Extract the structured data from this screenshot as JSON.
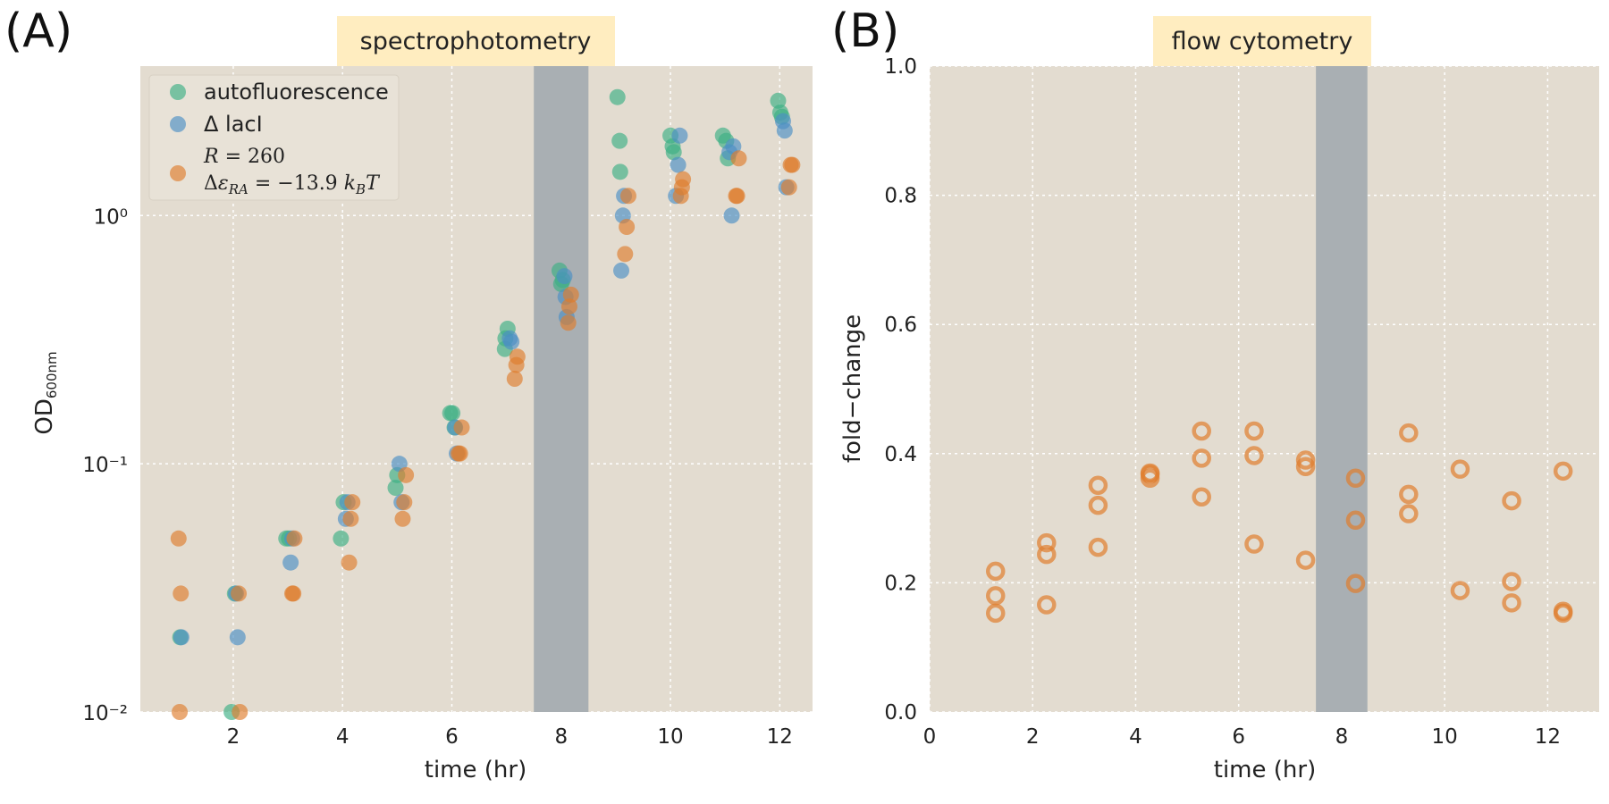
{
  "colors": {
    "background": "#E3DCD0",
    "grid": "#FFFFFF",
    "shade": "#A9AFB3",
    "title_bg": "#FFEDC0",
    "autofluorescence": "#3CAF84",
    "delta_laci": "#4B8FC4",
    "R260": "#DF7D2D"
  },
  "panel_labels": [
    "(A)",
    "(B)"
  ],
  "chart_data": [
    {
      "type": "scatter",
      "title": "spectrophotometry",
      "xlabel": "time (hr)",
      "ylabel": "OD600nm",
      "yscale": "log",
      "xlim": [
        0.3,
        12.6
      ],
      "ylim": [
        0.01,
        4.0
      ],
      "xticks": [
        2,
        4,
        6,
        8,
        10,
        12
      ],
      "yticks": [
        {
          "value": 0.01,
          "label": "10⁻²"
        },
        {
          "value": 0.1,
          "label": "10⁻¹"
        },
        {
          "value": 1,
          "label": "10⁰"
        }
      ],
      "shaded_region": [
        7.5,
        8.5
      ],
      "grid": true,
      "legend": "top-left",
      "series": [
        {
          "name": "autofluorescence",
          "color_key": "autofluorescence",
          "points": [
            [
              1.03,
              0.02
            ],
            [
              1.97,
              0.01
            ],
            [
              2.03,
              0.03
            ],
            [
              2.97,
              0.05
            ],
            [
              3.02,
              0.05
            ],
            [
              3.97,
              0.05
            ],
            [
              4.02,
              0.07
            ],
            [
              4.97,
              0.08
            ],
            [
              5.0,
              0.09
            ],
            [
              5.97,
              0.16
            ],
            [
              6.01,
              0.16
            ],
            [
              6.05,
              0.14
            ],
            [
              6.98,
              0.32
            ],
            [
              7.02,
              0.35
            ],
            [
              6.97,
              0.29
            ],
            [
              7.97,
              0.6
            ],
            [
              8.0,
              0.53
            ],
            [
              8.03,
              0.55
            ],
            [
              9.03,
              3.0
            ],
            [
              9.07,
              2.0
            ],
            [
              9.08,
              1.5
            ],
            [
              10.0,
              2.1
            ],
            [
              10.04,
              1.9
            ],
            [
              10.06,
              1.8
            ],
            [
              10.96,
              2.1
            ],
            [
              11.02,
              2.0
            ],
            [
              11.05,
              1.7
            ],
            [
              11.97,
              2.9
            ],
            [
              12.01,
              2.6
            ],
            [
              12.04,
              2.5
            ]
          ]
        },
        {
          "name": "Δ lacI",
          "color_key": "delta_laci",
          "points": [
            [
              1.05,
              0.02
            ],
            [
              2.05,
              0.03
            ],
            [
              2.08,
              0.02
            ],
            [
              3.05,
              0.04
            ],
            [
              3.08,
              0.05
            ],
            [
              4.06,
              0.06
            ],
            [
              4.09,
              0.07
            ],
            [
              5.04,
              0.1
            ],
            [
              5.08,
              0.07
            ],
            [
              6.06,
              0.14
            ],
            [
              6.09,
              0.11
            ],
            [
              7.06,
              0.32
            ],
            [
              7.09,
              0.31
            ],
            [
              8.06,
              0.57
            ],
            [
              8.08,
              0.47
            ],
            [
              8.1,
              0.39
            ],
            [
              9.1,
              0.6
            ],
            [
              9.13,
              1.0
            ],
            [
              9.15,
              1.2
            ],
            [
              10.1,
              1.2
            ],
            [
              10.14,
              1.6
            ],
            [
              10.17,
              2.1
            ],
            [
              11.08,
              1.8
            ],
            [
              11.12,
              1.0
            ],
            [
              11.15,
              1.9
            ],
            [
              12.06,
              2.4
            ],
            [
              12.09,
              2.2
            ],
            [
              12.12,
              1.3
            ]
          ]
        },
        {
          "name": "R = 260, Δε_RA = −13.9 k_BT",
          "color_key": "R260",
          "points": [
            [
              1.0,
              0.05
            ],
            [
              1.04,
              0.03
            ],
            [
              1.02,
              0.01
            ],
            [
              2.1,
              0.03
            ],
            [
              2.12,
              0.01
            ],
            [
              3.08,
              0.03
            ],
            [
              3.12,
              0.05
            ],
            [
              3.1,
              0.03
            ],
            [
              4.12,
              0.04
            ],
            [
              4.15,
              0.06
            ],
            [
              4.18,
              0.07
            ],
            [
              5.1,
              0.06
            ],
            [
              5.13,
              0.07
            ],
            [
              5.16,
              0.09
            ],
            [
              6.12,
              0.11
            ],
            [
              6.15,
              0.11
            ],
            [
              6.18,
              0.14
            ],
            [
              7.15,
              0.22
            ],
            [
              7.18,
              0.25
            ],
            [
              7.2,
              0.27
            ],
            [
              8.13,
              0.37
            ],
            [
              8.15,
              0.43
            ],
            [
              8.18,
              0.48
            ],
            [
              9.17,
              0.7
            ],
            [
              9.2,
              0.9
            ],
            [
              9.23,
              1.2
            ],
            [
              10.19,
              1.2
            ],
            [
              10.21,
              1.3
            ],
            [
              10.23,
              1.4
            ],
            [
              11.2,
              1.2
            ],
            [
              11.22,
              1.2
            ],
            [
              11.25,
              1.7
            ],
            [
              12.17,
              1.3
            ],
            [
              12.2,
              1.6
            ],
            [
              12.23,
              1.6
            ]
          ]
        }
      ]
    },
    {
      "type": "scatter",
      "title": "flow cytometry",
      "xlabel": "time (hr)",
      "ylabel": "fold−change",
      "xlim": [
        0,
        13
      ],
      "ylim": [
        0.0,
        1.0
      ],
      "xticks": [
        0,
        2,
        4,
        6,
        8,
        10,
        12
      ],
      "yticks": [
        0.0,
        0.2,
        0.4,
        0.6,
        0.8,
        1.0
      ],
      "ytick_labels": [
        "0.0",
        "0.2",
        "0.4",
        "0.6",
        "0.8",
        "1.0"
      ],
      "shaded_region": [
        7.5,
        8.5
      ],
      "grid": true,
      "series": [
        {
          "color_key": "R260",
          "marker": "open-circle",
          "points": [
            [
              1.28,
              0.218
            ],
            [
              1.28,
              0.18
            ],
            [
              1.28,
              0.153
            ],
            [
              2.27,
              0.262
            ],
            [
              2.27,
              0.244
            ],
            [
              2.27,
              0.166
            ],
            [
              3.27,
              0.351
            ],
            [
              3.27,
              0.32
            ],
            [
              3.27,
              0.255
            ],
            [
              4.28,
              0.37
            ],
            [
              4.28,
              0.368
            ],
            [
              4.28,
              0.362
            ],
            [
              5.28,
              0.435
            ],
            [
              5.28,
              0.393
            ],
            [
              5.28,
              0.333
            ],
            [
              6.3,
              0.435
            ],
            [
              6.3,
              0.397
            ],
            [
              6.3,
              0.26
            ],
            [
              7.3,
              0.39
            ],
            [
              7.3,
              0.38
            ],
            [
              7.3,
              0.235
            ],
            [
              8.27,
              0.362
            ],
            [
              8.27,
              0.297
            ],
            [
              8.27,
              0.199
            ],
            [
              9.3,
              0.432
            ],
            [
              9.3,
              0.337
            ],
            [
              9.3,
              0.307
            ],
            [
              10.3,
              0.376
            ],
            [
              10.3,
              0.188
            ],
            [
              11.3,
              0.327
            ],
            [
              11.3,
              0.202
            ],
            [
              11.3,
              0.169
            ],
            [
              12.3,
              0.373
            ],
            [
              12.3,
              0.156
            ],
            [
              12.3,
              0.153
            ]
          ]
        }
      ]
    }
  ]
}
